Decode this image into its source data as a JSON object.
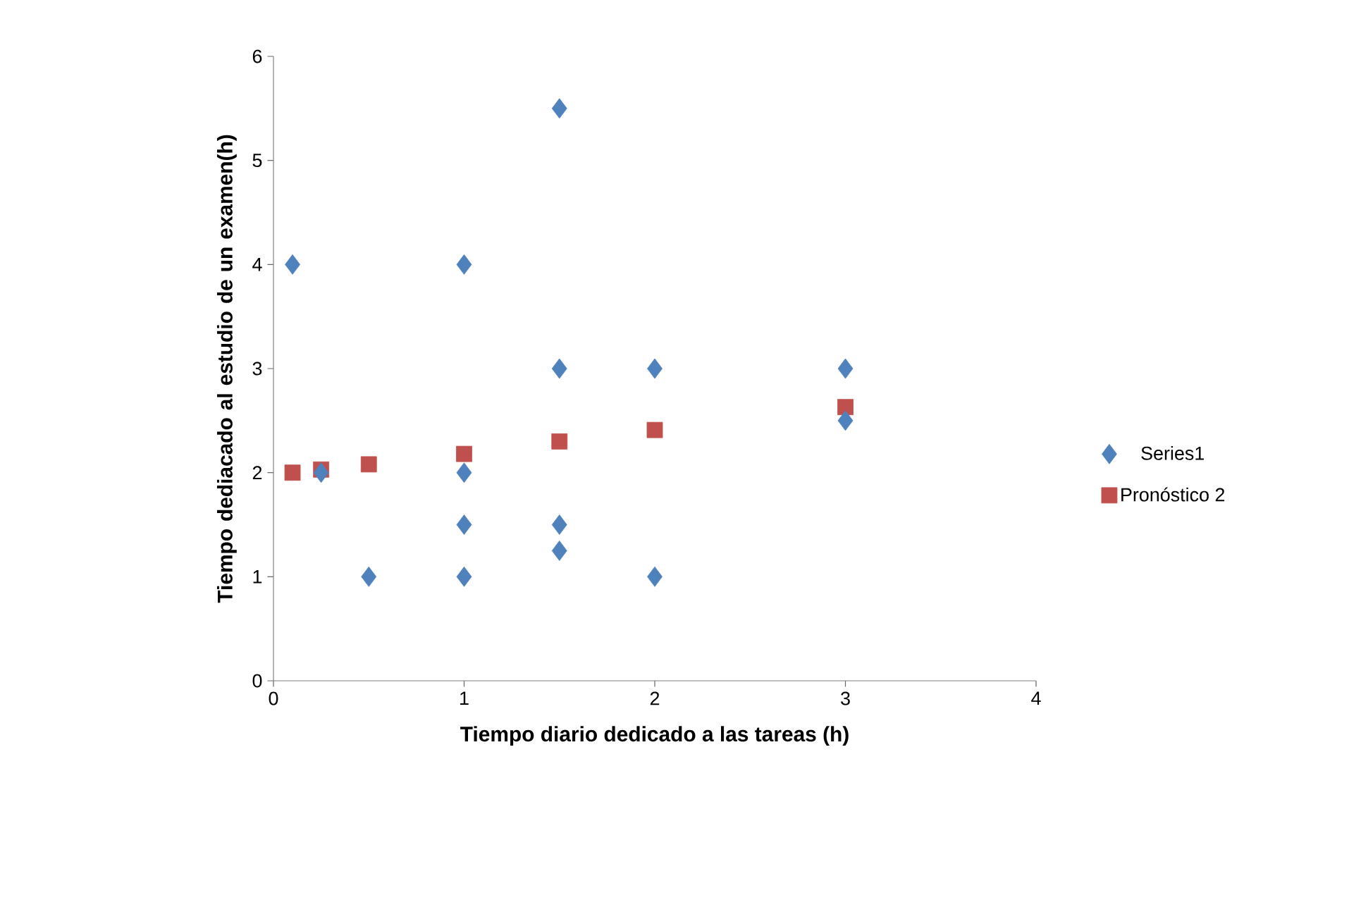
{
  "chart_data": {
    "type": "scatter",
    "xlabel": "Tiempo diario dedicado a las tareas (h)",
    "ylabel": "Tiempo dediacado al estudio de un examen(h)",
    "xlim": [
      0,
      4
    ],
    "xticks": [
      0,
      1,
      2,
      3,
      4
    ],
    "ylim": [
      0,
      6
    ],
    "yticks": [
      0,
      1,
      2,
      3,
      4,
      5,
      6
    ],
    "grid": false,
    "legend": "right",
    "series": [
      {
        "name": "Series1",
        "color": "#4f81bd",
        "marker": "diamond",
        "x": [
          0.1,
          0.25,
          0.5,
          1,
          1,
          1,
          1,
          1.5,
          1.5,
          1.5,
          1.5,
          2,
          2,
          3,
          3
        ],
        "values": [
          4,
          2,
          1,
          4,
          2,
          1.5,
          1,
          5.5,
          3,
          1.5,
          1.25,
          3,
          1,
          3,
          2.5
        ]
      },
      {
        "name": "Pronóstico 2",
        "color": "#c0504d",
        "marker": "square",
        "x": [
          0.1,
          0.25,
          0.5,
          1,
          1.5,
          2,
          3
        ],
        "values": [
          2.0,
          2.03,
          2.08,
          2.18,
          2.3,
          2.41,
          2.63
        ]
      }
    ]
  }
}
